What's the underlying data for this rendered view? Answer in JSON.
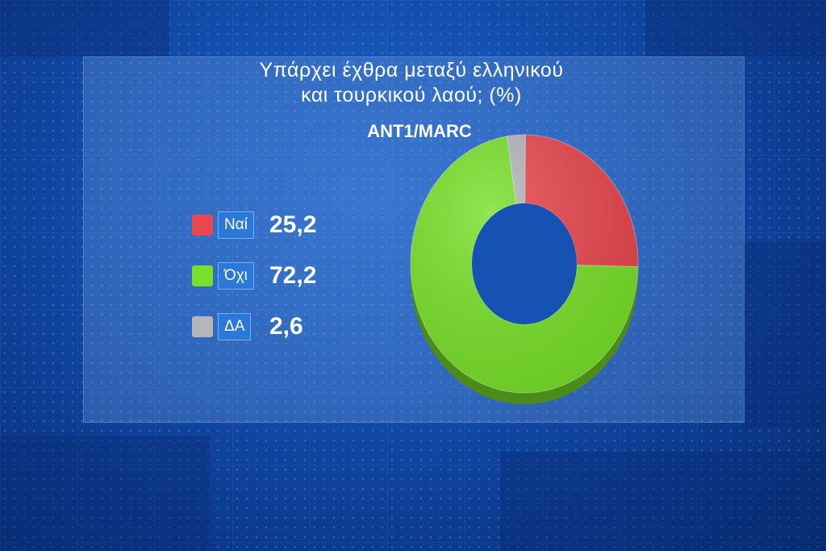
{
  "chart_data": {
    "type": "pie",
    "title": "Υπάρχει έχθρα μεταξύ ελληνικού\nκαι τουρκικού λαού; (%)",
    "source": "ANT1/MARC",
    "slices": [
      {
        "label": "Ναί",
        "value": 25.2,
        "display": "25,2",
        "color": "#e8474e"
      },
      {
        "label": "Όχι",
        "value": 72.2,
        "display": "72,2",
        "color": "#78e02a"
      },
      {
        "label": "ΔΑ",
        "value": 2.6,
        "display": "2,6",
        "color": "#b4b6bc"
      }
    ],
    "style": "donut",
    "legend": "left"
  }
}
